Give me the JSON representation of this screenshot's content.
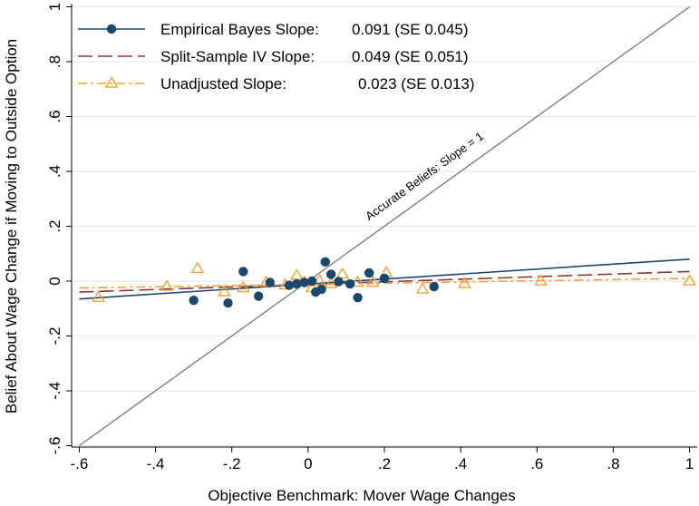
{
  "chart_data": {
    "type": "scatter",
    "xlabel": "Objective Benchmark: Mover Wage Changes",
    "ylabel": "Belief About Wage Change if Moving to Outside Option",
    "xlim": [
      -0.62,
      1.02
    ],
    "ylim": [
      -0.605,
      1.005
    ],
    "x_ticks": [
      -0.6,
      -0.4,
      -0.2,
      0,
      0.2,
      0.4,
      0.6,
      0.8,
      1
    ],
    "x_tick_labels": [
      "-.6",
      "-.4",
      "-.2",
      "0",
      ".2",
      ".4",
      ".6",
      ".8",
      "1"
    ],
    "y_ticks": [
      -0.6,
      -0.4,
      -0.2,
      0,
      0.2,
      0.4,
      0.6,
      0.8,
      1
    ],
    "y_tick_labels": [
      "-.6",
      "-.4",
      "-.2",
      "0",
      ".2",
      ".4",
      ".6",
      ".8",
      "1"
    ],
    "grid": "horizontal",
    "legend_position": "top-left",
    "colors": {
      "empirical_bayes": "#1a476f",
      "split_sample": "#90353b",
      "unadjusted": "#f5a033",
      "accurate": "#7f7f7f",
      "grid": "#dfe6ee"
    },
    "legend": [
      {
        "label": "Empirical Bayes Slope:",
        "value": "0.091 (SE 0.045)"
      },
      {
        "label": "Split-Sample IV Slope:",
        "value": "0.049 (SE 0.051)"
      },
      {
        "label": "Unadjusted Slope:",
        "value": "0.023 (SE 0.013)"
      }
    ],
    "annotation": "Accurate Beliefs: Slope = 1",
    "series": [
      {
        "name": "Empirical Bayes Slope: 0.091 (SE 0.045)",
        "marker": "filled-circle",
        "line_from": [
          -0.6,
          -0.065
        ],
        "line_to": [
          1.0,
          0.08
        ],
        "points": [
          [
            -0.3,
            -0.07
          ],
          [
            -0.21,
            -0.08
          ],
          [
            -0.17,
            0.035
          ],
          [
            -0.13,
            -0.055
          ],
          [
            -0.1,
            -0.005
          ],
          [
            -0.05,
            -0.015
          ],
          [
            -0.03,
            -0.01
          ],
          [
            -0.01,
            -0.005
          ],
          [
            0.01,
            0.0
          ],
          [
            0.02,
            -0.04
          ],
          [
            0.035,
            -0.03
          ],
          [
            0.045,
            0.07
          ],
          [
            0.06,
            0.025
          ],
          [
            0.08,
            -0.002
          ],
          [
            0.11,
            -0.01
          ],
          [
            0.13,
            -0.06
          ],
          [
            0.16,
            0.03
          ],
          [
            0.2,
            0.01
          ],
          [
            0.33,
            -0.02
          ]
        ]
      },
      {
        "name": "Split-Sample IV Slope: 0.049 (SE 0.051)",
        "marker": "none",
        "line_from": [
          -0.6,
          -0.04
        ],
        "line_to": [
          1.0,
          0.035
        ]
      },
      {
        "name": "Unadjusted Slope: 0.023 (SE 0.013)",
        "marker": "hollow-triangle",
        "line_from": [
          -0.6,
          -0.025
        ],
        "line_to": [
          1.0,
          0.01
        ],
        "points": [
          [
            -0.55,
            -0.06
          ],
          [
            -0.37,
            -0.02
          ],
          [
            -0.29,
            0.045
          ],
          [
            -0.22,
            -0.04
          ],
          [
            -0.17,
            -0.025
          ],
          [
            -0.11,
            -0.005
          ],
          [
            -0.06,
            -0.015
          ],
          [
            -0.03,
            0.02
          ],
          [
            -0.01,
            -0.005
          ],
          [
            0.01,
            -0.025
          ],
          [
            0.03,
            0.0
          ],
          [
            0.06,
            -0.01
          ],
          [
            0.09,
            0.025
          ],
          [
            0.13,
            -0.005
          ],
          [
            0.17,
            -0.005
          ],
          [
            0.205,
            0.03
          ],
          [
            0.3,
            -0.03
          ],
          [
            0.41,
            -0.01
          ],
          [
            0.61,
            0.0
          ],
          [
            1.0,
            0.0
          ]
        ]
      },
      {
        "name": "Accurate Beliefs: Slope = 1",
        "marker": "none",
        "line_from": [
          -0.6,
          -0.6
        ],
        "line_to": [
          1.0,
          1.0
        ]
      }
    ]
  }
}
